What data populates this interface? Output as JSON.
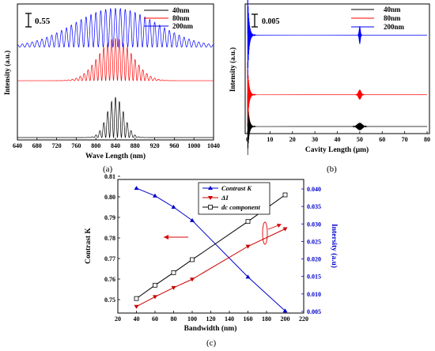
{
  "chart_data": [
    {
      "id": "a",
      "caption": "(a)",
      "type": "line",
      "xlabel": "Wave Length (nm)",
      "ylabel": "Intensity (a.u.)",
      "xlim": [
        640,
        1040
      ],
      "xticks": [
        640,
        680,
        720,
        760,
        800,
        840,
        880,
        920,
        960,
        1000,
        1040
      ],
      "scale_bar_label": "0.55",
      "legend_position": "top-right",
      "series": [
        {
          "name": "40nm",
          "color": "#000000",
          "center": 840,
          "fwhm": 40,
          "fringe_period": 8,
          "amplitude": 0.78,
          "baseline_offset": 0.0
        },
        {
          "name": "80nm",
          "color": "#ff0000",
          "center": 840,
          "fwhm": 80,
          "fringe_period": 8,
          "amplitude": 0.82,
          "baseline_offset": 1.1
        },
        {
          "name": "200nm",
          "color": "#0000ff",
          "center": 840,
          "fwhm": 200,
          "fringe_period": 10,
          "amplitude": 0.75,
          "baseline_offset": 1.75
        }
      ]
    },
    {
      "id": "b",
      "caption": "(b)",
      "type": "line",
      "xlabel": "Cavity Length (μm)",
      "ylabel": "Intensity (a.u.)",
      "xlim": [
        0,
        80
      ],
      "xticks": [
        0,
        10,
        20,
        30,
        40,
        50,
        60,
        70,
        80
      ],
      "scale_bar_label": "0.005",
      "legend_position": "top-right",
      "series": [
        {
          "name": "40nm",
          "color": "#000000",
          "dc_peak": 0.004,
          "side_peak_position": 50,
          "side_peak_height": 0.0009,
          "side_peak_width": 2.2,
          "baseline_offset": 0.0
        },
        {
          "name": "80nm",
          "color": "#ff0000",
          "dc_peak": 0.004,
          "side_peak_position": 50,
          "side_peak_height": 0.0012,
          "side_peak_width": 1.2,
          "baseline_offset": 0.0039
        },
        {
          "name": "200nm",
          "color": "#0000ff",
          "dc_peak": 0.006,
          "side_peak_position": 50,
          "side_peak_height": 0.0022,
          "side_peak_width": 0.6,
          "baseline_offset": 0.0112
        }
      ]
    },
    {
      "id": "c",
      "caption": "(c)",
      "type": "line",
      "xlabel": "Bandwidth (nm)",
      "ylabel_left": "Contrast K",
      "ylabel_right": "Intersity (a.u)",
      "xlim": [
        20,
        220
      ],
      "xticks": [
        20,
        40,
        60,
        80,
        100,
        120,
        140,
        160,
        180,
        200,
        220
      ],
      "ylim_left": [
        0.745,
        0.81
      ],
      "yticks_left": [
        0.75,
        0.76,
        0.77,
        0.78,
        0.79,
        0.8,
        0.81
      ],
      "ylim_right": [
        0.005,
        0.04
      ],
      "yticks_right": [
        0.005,
        0.01,
        0.015,
        0.02,
        0.025,
        0.03,
        0.035,
        0.04
      ],
      "legend_position": "top-center",
      "series": [
        {
          "name": "Contrast K",
          "axis": "left",
          "color": "#0000cc",
          "marker": "triangle-up",
          "x": [
            40,
            60,
            80,
            100,
            160,
            200
          ],
          "y": [
            0.8042,
            0.8005,
            0.795,
            0.7885,
            0.761,
            0.7445
          ]
        },
        {
          "name": "ΔI",
          "axis": "right",
          "color": "#cc0000",
          "marker": "triangle-down",
          "x": [
            40,
            60,
            80,
            100,
            160,
            200
          ],
          "y": [
            0.0064,
            0.0092,
            0.0118,
            0.0142,
            0.0236,
            0.0286
          ]
        },
        {
          "name": "dc component",
          "axis": "right",
          "color": "#000000",
          "marker": "square-open",
          "x": [
            40,
            60,
            80,
            100,
            160,
            200
          ],
          "y": [
            0.0087,
            0.0125,
            0.0161,
            0.0198,
            0.0307,
            0.0383
          ]
        }
      ]
    }
  ]
}
